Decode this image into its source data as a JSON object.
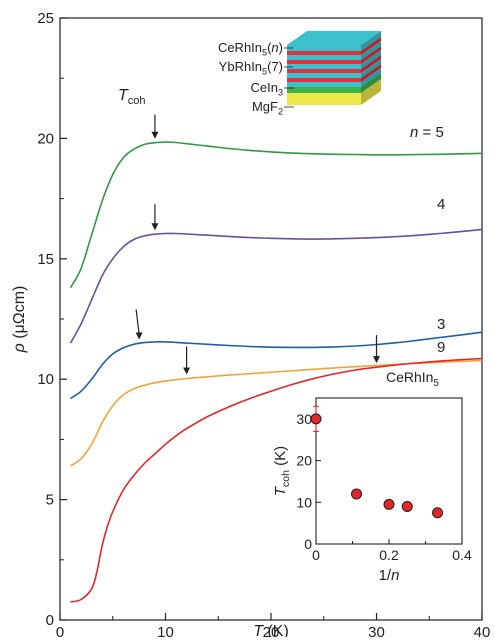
{
  "chart_data": [
    {
      "type": "line",
      "title": "",
      "xlabel_var": "T",
      "xlabel_unit": "(K)",
      "ylabel_var": "ρ",
      "ylabel_unit": "(μΩcm)",
      "xlim": [
        0,
        40
      ],
      "ylim": [
        0,
        25
      ],
      "xticks": [
        0,
        10,
        20,
        30,
        40
      ],
      "yticks": [
        0,
        5,
        10,
        15,
        20,
        25
      ],
      "grid": false,
      "tcoh_annotation": {
        "base": "T",
        "sub": "coh"
      },
      "series": [
        {
          "name": "n = 5",
          "label_parts": [
            {
              "t": "n",
              "style": "italic"
            },
            {
              "t": " = 5"
            }
          ],
          "color": "#2e9a42",
          "x": [
            1,
            2,
            3,
            4,
            5,
            6,
            7,
            8,
            9,
            10,
            11,
            12,
            14,
            16,
            18,
            20,
            22,
            24,
            26,
            28,
            30,
            32,
            34,
            36,
            38,
            40
          ],
          "y": [
            13.8,
            14.6,
            16.0,
            17.4,
            18.5,
            19.2,
            19.55,
            19.75,
            19.82,
            19.85,
            19.83,
            19.78,
            19.68,
            19.58,
            19.5,
            19.44,
            19.39,
            19.36,
            19.34,
            19.33,
            19.32,
            19.32,
            19.33,
            19.34,
            19.36,
            19.38
          ]
        },
        {
          "name": "4",
          "label_parts": [
            {
              "t": "4"
            }
          ],
          "color": "#6a4fa0",
          "x": [
            1,
            2,
            3,
            4,
            5,
            6,
            7,
            8,
            9,
            10,
            11,
            12,
            14,
            16,
            18,
            20,
            22,
            24,
            26,
            28,
            30,
            32,
            34,
            36,
            38,
            40
          ],
          "y": [
            11.5,
            12.3,
            13.3,
            14.3,
            15.0,
            15.5,
            15.8,
            15.95,
            16.02,
            16.05,
            16.05,
            16.03,
            15.98,
            15.93,
            15.88,
            15.85,
            15.83,
            15.82,
            15.83,
            15.85,
            15.88,
            15.92,
            15.98,
            16.05,
            16.13,
            16.22
          ]
        },
        {
          "name": "3",
          "label_parts": [
            {
              "t": "3"
            }
          ],
          "color": "#1f5fa8",
          "x": [
            1,
            2,
            3,
            4,
            5,
            6,
            7,
            8,
            9,
            10,
            11,
            12,
            14,
            16,
            18,
            20,
            22,
            24,
            26,
            28,
            30,
            32,
            34,
            36,
            38,
            40
          ],
          "y": [
            9.2,
            9.5,
            10.0,
            10.6,
            11.05,
            11.3,
            11.45,
            11.52,
            11.55,
            11.55,
            11.53,
            11.5,
            11.45,
            11.4,
            11.36,
            11.33,
            11.32,
            11.32,
            11.34,
            11.38,
            11.44,
            11.52,
            11.62,
            11.73,
            11.84,
            11.95
          ]
        },
        {
          "name": "9",
          "label_parts": [
            {
              "t": "9"
            }
          ],
          "color": "#f2a33a",
          "x": [
            1,
            2,
            3,
            4,
            5,
            6,
            7,
            8,
            9,
            10,
            11,
            12,
            14,
            16,
            18,
            20,
            22,
            24,
            26,
            28,
            30,
            32,
            34,
            36,
            38,
            40
          ],
          "y": [
            6.4,
            6.7,
            7.3,
            8.2,
            8.9,
            9.35,
            9.6,
            9.75,
            9.85,
            9.92,
            9.98,
            10.03,
            10.1,
            10.17,
            10.23,
            10.29,
            10.35,
            10.41,
            10.47,
            10.52,
            10.57,
            10.62,
            10.66,
            10.7,
            10.74,
            10.78
          ]
        },
        {
          "name": "CeRhIn5",
          "label_parts": [
            {
              "t": "CeRhIn"
            },
            {
              "t": "5",
              "style": "sub"
            }
          ],
          "color": "#e3262a",
          "x": [
            1,
            2,
            3,
            3.5,
            4,
            4.5,
            5,
            6,
            7,
            8,
            9,
            10,
            11,
            12,
            14,
            16,
            18,
            20,
            22,
            24,
            26,
            28,
            30,
            32,
            34,
            36,
            38,
            40
          ],
          "y": [
            0.75,
            0.85,
            1.3,
            2.0,
            3.1,
            3.9,
            4.5,
            5.4,
            6.0,
            6.5,
            6.9,
            7.3,
            7.65,
            7.95,
            8.45,
            8.85,
            9.2,
            9.5,
            9.78,
            10.02,
            10.22,
            10.38,
            10.5,
            10.6,
            10.68,
            10.75,
            10.81,
            10.86
          ]
        }
      ],
      "annotations": {
        "arrows_x": [
          9.0,
          9.0,
          7.5,
          12.0,
          30.0
        ]
      },
      "legend_stack": [
        {
          "parts": [
            {
              "t": "CeRhIn"
            },
            {
              "t": "5",
              "style": "sub"
            },
            {
              "t": "("
            },
            {
              "t": "n",
              "style": "italic"
            },
            {
              "t": ")"
            }
          ],
          "color": "#3cc0cc"
        },
        {
          "parts": [
            {
              "t": "YbRhIn"
            },
            {
              "t": "5",
              "style": "sub"
            },
            {
              "t": "(7)"
            }
          ],
          "color": "#e0313e"
        },
        {
          "parts": [
            {
              "t": "CeIn"
            },
            {
              "t": "3",
              "style": "sub"
            }
          ],
          "color": "#3fb34a"
        },
        {
          "parts": [
            {
              "t": "MgF"
            },
            {
              "t": "2",
              "style": "sub"
            }
          ],
          "color": "#f0e84a"
        }
      ]
    },
    {
      "type": "scatter",
      "title": "",
      "xlabel_parts": [
        {
          "t": "1/"
        },
        {
          "t": "n",
          "style": "italic"
        }
      ],
      "ylabel_parts": [
        {
          "t": "T",
          "style": "italic"
        },
        {
          "t": "coh",
          "style": "sub"
        },
        {
          "t": " (K)"
        }
      ],
      "xlim": [
        0,
        0.4
      ],
      "ylim": [
        0,
        35
      ],
      "xticks": [
        0,
        0.2,
        0.4
      ],
      "xticklabels": [
        "0",
        "0.2",
        "0.4"
      ],
      "yticks": [
        0,
        10,
        20,
        30
      ],
      "grid": false,
      "points": [
        {
          "x": 0.0,
          "y": 30.0,
          "err": 3.0
        },
        {
          "x": 0.111,
          "y": 12.0
        },
        {
          "x": 0.2,
          "y": 9.5
        },
        {
          "x": 0.25,
          "y": 9.0
        },
        {
          "x": 0.333,
          "y": 7.5
        }
      ],
      "marker_color": "#e3262a"
    }
  ]
}
